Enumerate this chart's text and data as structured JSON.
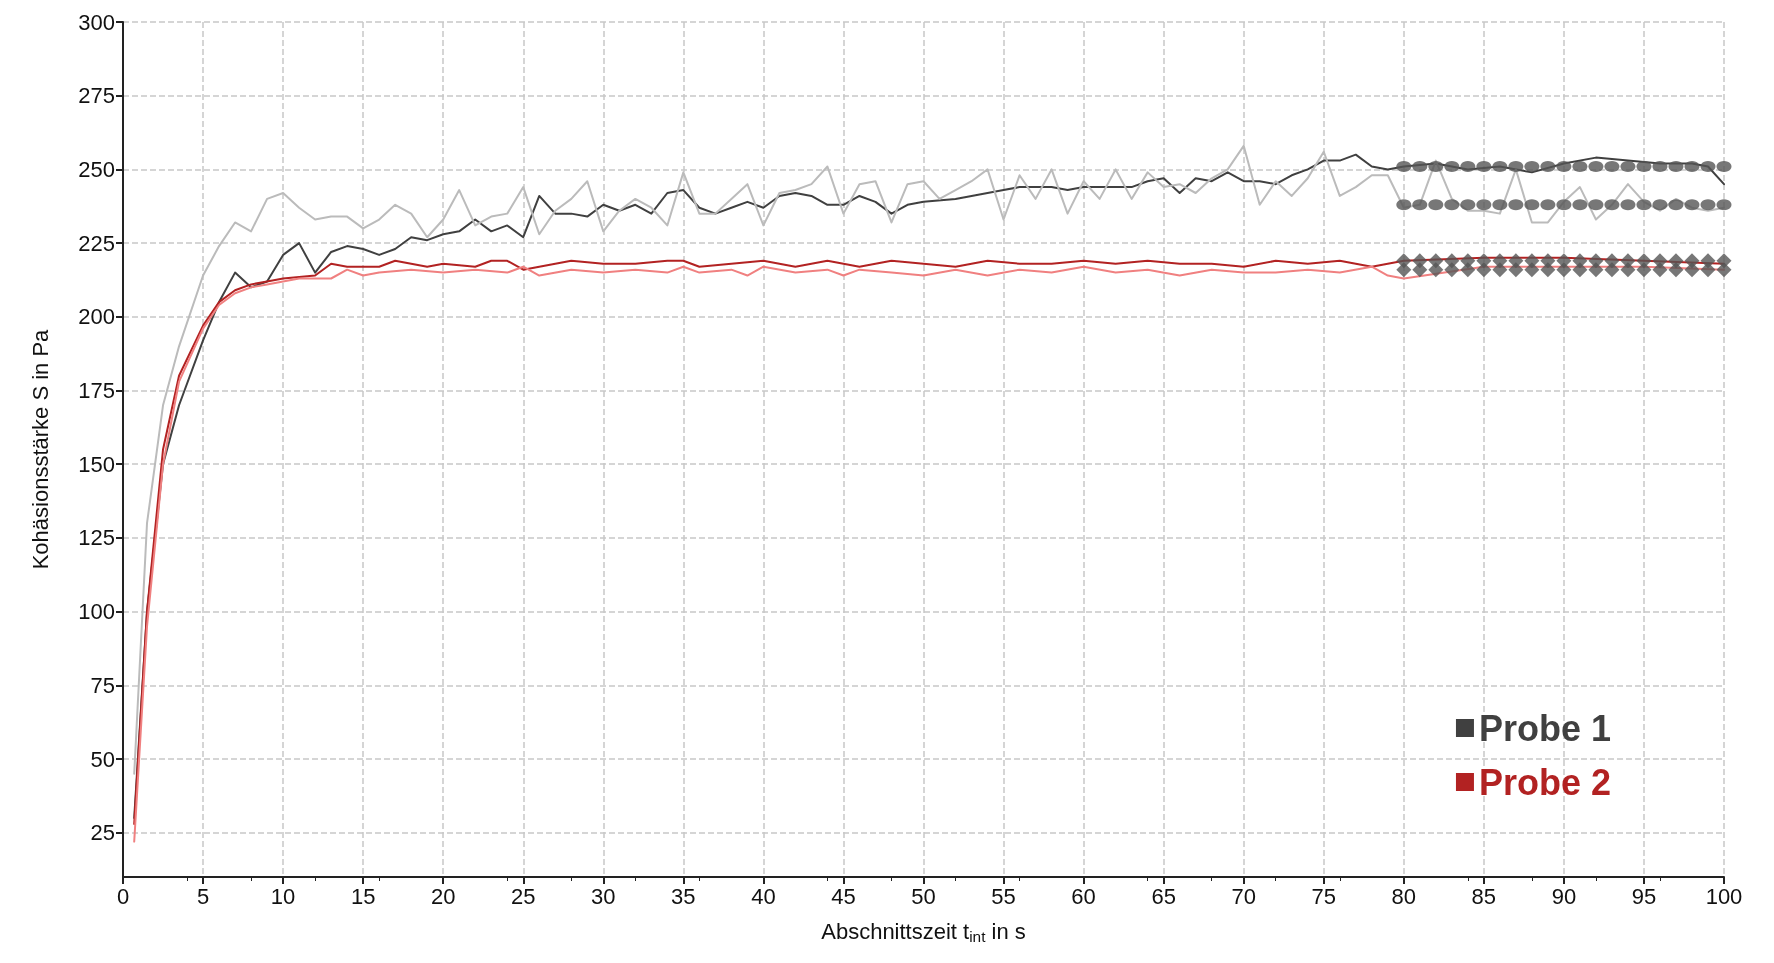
{
  "chart_data": {
    "type": "line",
    "xlabel": "Abschnittszeit t$_{int}$ in s",
    "ylabel": "Kohäsionsstärke S in Pa",
    "xlim": [
      0,
      100
    ],
    "xticks": [
      0,
      5,
      10,
      15,
      20,
      25,
      30,
      35,
      40,
      45,
      50,
      55,
      60,
      65,
      70,
      75,
      80,
      85,
      90,
      95,
      100
    ],
    "ylim": [
      10,
      300
    ],
    "yticks": [
      25,
      50,
      75,
      100,
      125,
      150,
      175,
      200,
      225,
      250,
      275,
      300
    ],
    "grid": true,
    "line_style": "solid",
    "marker": "none",
    "legend": "bottom right",
    "series": [
      {
        "name": "Probe 1",
        "color": "#404040",
        "x": [
          0.7,
          1.5,
          2.5,
          3.5,
          5,
          6,
          7,
          8,
          9,
          10,
          11,
          12,
          13,
          14,
          15,
          16,
          17,
          18,
          19,
          20,
          21,
          22,
          23,
          24,
          25,
          26,
          27,
          28,
          29,
          30,
          31,
          32,
          33,
          34,
          35,
          36,
          37,
          38,
          39,
          40,
          41,
          42,
          43,
          44,
          45,
          46,
          47,
          48,
          49,
          50,
          52,
          54,
          55,
          56,
          58,
          59,
          60,
          62,
          63,
          64,
          65,
          66,
          67,
          68,
          69,
          70,
          71,
          72,
          73,
          74,
          75,
          76,
          77,
          78,
          79,
          80,
          82,
          84,
          86,
          88,
          90,
          92,
          94,
          96,
          98,
          99,
          100
        ],
        "values": [
          30,
          100,
          150,
          170,
          192,
          205,
          215,
          210,
          212,
          221,
          225,
          215,
          222,
          224,
          223,
          221,
          223,
          227,
          226,
          228,
          229,
          233,
          229,
          231,
          227,
          241,
          235,
          235,
          234,
          238,
          236,
          238,
          235,
          242,
          243,
          237,
          235,
          237,
          239,
          237,
          241,
          242,
          241,
          238,
          238,
          241,
          239,
          235,
          238,
          239,
          240,
          242,
          243,
          244,
          244,
          243,
          244,
          244,
          244,
          246,
          247,
          242,
          247,
          246,
          249,
          246,
          246,
          245,
          248,
          250,
          253,
          253,
          255,
          251,
          250,
          251,
          252,
          250,
          251,
          249,
          252,
          254,
          253,
          252,
          252,
          251,
          245
        ]
      },
      {
        "color": "#bbbbbb",
        "x": [
          0.7,
          1.5,
          2.5,
          3.5,
          5,
          6,
          7,
          8,
          9,
          10,
          11,
          12,
          13,
          14,
          15,
          16,
          17,
          18,
          19,
          20,
          21,
          22,
          23,
          24,
          25,
          26,
          27,
          28,
          29,
          30,
          31,
          32,
          33,
          34,
          35,
          36,
          37,
          38,
          39,
          40,
          41,
          42,
          43,
          44,
          45,
          46,
          47,
          48,
          49,
          50,
          51,
          52,
          53,
          54,
          55,
          56,
          57,
          58,
          59,
          60,
          61,
          62,
          63,
          64,
          65,
          66,
          67,
          68,
          69,
          70,
          71,
          72,
          73,
          74,
          75,
          76,
          77,
          78,
          79,
          80,
          81,
          82,
          83,
          84,
          85,
          86,
          87,
          88,
          89,
          90,
          91,
          92,
          93,
          94,
          95,
          96,
          97,
          98,
          99,
          100
        ],
        "values": [
          45,
          130,
          170,
          190,
          214,
          224,
          232,
          229,
          240,
          242,
          237,
          233,
          234,
          234,
          230,
          233,
          238,
          235,
          227,
          233,
          243,
          231,
          234,
          235,
          244,
          228,
          236,
          240,
          246,
          229,
          236,
          240,
          237,
          231,
          249,
          235,
          235,
          240,
          245,
          231,
          242,
          243,
          245,
          251,
          235,
          245,
          246,
          232,
          245,
          246,
          240,
          243,
          246,
          250,
          233,
          248,
          240,
          250,
          235,
          246,
          240,
          250,
          240,
          249,
          244,
          245,
          242,
          247,
          250,
          258,
          238,
          246,
          241,
          247,
          256,
          241,
          244,
          248,
          248,
          237,
          238,
          253,
          240,
          236,
          236,
          235,
          250,
          232,
          232,
          239,
          244,
          233,
          238,
          245,
          239,
          236,
          240,
          237,
          236,
          237
        ]
      },
      {
        "name": "Probe 2",
        "color": "#b22222",
        "x": [
          0.7,
          1.5,
          2.5,
          3.5,
          5,
          6,
          7,
          8,
          9,
          10,
          12,
          13,
          14,
          16,
          17,
          18,
          19,
          20,
          22,
          23,
          24,
          25,
          26,
          28,
          30,
          32,
          34,
          35,
          36,
          38,
          40,
          42,
          44,
          46,
          48,
          50,
          52,
          54,
          56,
          58,
          60,
          62,
          64,
          66,
          68,
          70,
          72,
          74,
          76,
          78,
          80,
          85,
          90,
          95,
          100
        ],
        "values": [
          28,
          100,
          155,
          180,
          197,
          205,
          209,
          211,
          212,
          213,
          214,
          218,
          217,
          217,
          219,
          218,
          217,
          218,
          217,
          219,
          219,
          216,
          217,
          219,
          218,
          218,
          219,
          219,
          217,
          218,
          219,
          217,
          219,
          217,
          219,
          218,
          217,
          219,
          218,
          218,
          219,
          218,
          219,
          218,
          218,
          217,
          219,
          218,
          219,
          217,
          219,
          220,
          220,
          219,
          218
        ]
      },
      {
        "color": "#f08080",
        "x": [
          0.7,
          1.5,
          2.5,
          3.5,
          5,
          6,
          7,
          8,
          9,
          10,
          11,
          12,
          13,
          14,
          15,
          16,
          18,
          20,
          22,
          24,
          25,
          26,
          28,
          30,
          32,
          34,
          35,
          36,
          38,
          39,
          40,
          42,
          44,
          45,
          46,
          48,
          50,
          52,
          54,
          56,
          58,
          60,
          62,
          64,
          66,
          68,
          70,
          72,
          74,
          76,
          78,
          79,
          80,
          85,
          90,
          95,
          100
        ],
        "values": [
          22,
          95,
          150,
          178,
          196,
          204,
          208,
          210,
          211,
          212,
          213,
          213,
          213,
          216,
          214,
          215,
          216,
          215,
          216,
          215,
          217,
          214,
          216,
          215,
          216,
          215,
          217,
          215,
          216,
          214,
          217,
          215,
          216,
          214,
          216,
          215,
          214,
          216,
          214,
          216,
          215,
          217,
          215,
          216,
          214,
          216,
          215,
          215,
          216,
          215,
          217,
          214,
          213,
          217,
          217,
          217,
          216
        ]
      },
      {
        "type": "scatter",
        "marker": "circle",
        "color": "#555555",
        "x": [
          80,
          81,
          82,
          83,
          84,
          85,
          86,
          87,
          88,
          89,
          90,
          91,
          92,
          93,
          94,
          95,
          96,
          97,
          98,
          99,
          100
        ],
        "values": [
          251,
          251,
          251,
          251,
          251,
          251,
          251,
          251,
          251,
          251,
          251,
          251,
          251,
          251,
          251,
          251,
          251,
          251,
          251,
          251,
          251
        ]
      },
      {
        "type": "scatter",
        "marker": "circle",
        "color": "#555555",
        "x": [
          80,
          81,
          82,
          83,
          84,
          85,
          86,
          87,
          88,
          89,
          90,
          91,
          92,
          93,
          94,
          95,
          96,
          97,
          98,
          99,
          100
        ],
        "values": [
          238,
          238,
          238,
          238,
          238,
          238,
          238,
          238,
          238,
          238,
          238,
          238,
          238,
          238,
          238,
          238,
          238,
          238,
          238,
          238,
          238
        ]
      },
      {
        "type": "scatter",
        "marker": "diamond",
        "color": "#555555",
        "x": [
          80,
          81,
          82,
          83,
          84,
          85,
          86,
          87,
          88,
          89,
          90,
          91,
          92,
          93,
          94,
          95,
          96,
          97,
          98,
          99,
          100
        ],
        "values": [
          219,
          219,
          219,
          219,
          219,
          219,
          219,
          219,
          219,
          219,
          219,
          219,
          219,
          219,
          219,
          219,
          219,
          219,
          219,
          219,
          219
        ]
      },
      {
        "type": "scatter",
        "marker": "diamond",
        "color": "#555555",
        "x": [
          80,
          81,
          82,
          83,
          84,
          85,
          86,
          87,
          88,
          89,
          90,
          91,
          92,
          93,
          94,
          95,
          96,
          97,
          98,
          99,
          100
        ],
        "values": [
          216,
          216,
          216,
          216,
          216,
          216,
          216,
          216,
          216,
          216,
          216,
          216,
          216,
          216,
          216,
          216,
          216,
          216,
          216,
          216,
          216
        ]
      }
    ]
  }
}
